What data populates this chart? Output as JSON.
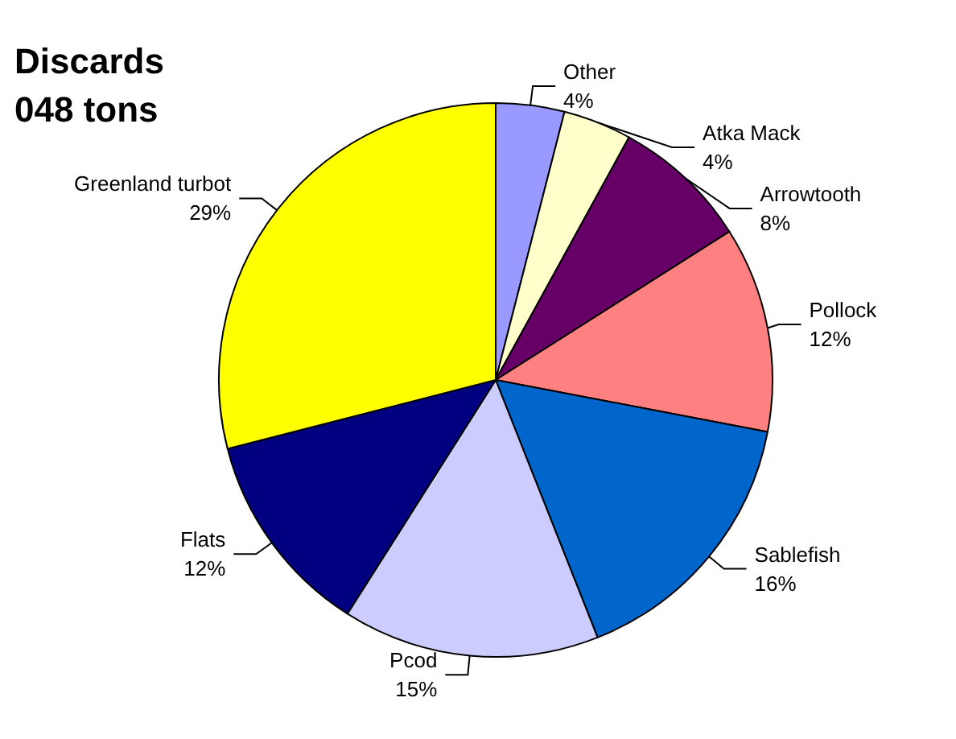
{
  "chart_data": {
    "type": "pie",
    "title": "Discards\n048 tons",
    "categories": [
      "Other",
      "Atka Mack",
      "Arrowtooth",
      "Pollock",
      "Sablefish",
      "Pcod",
      "Flats",
      "Greenland turbot"
    ],
    "values": [
      4,
      4,
      8,
      12,
      16,
      15,
      12,
      29
    ],
    "colors": [
      "#9999ff",
      "#ffffcc",
      "#660066",
      "#ff8080",
      "#0066cc",
      "#ccccff",
      "#000080",
      "#ffff00"
    ],
    "value_labels": [
      "4%",
      "4%",
      "8%",
      "12%",
      "16%",
      "15%",
      "12%",
      "29%"
    ],
    "legend": false
  }
}
